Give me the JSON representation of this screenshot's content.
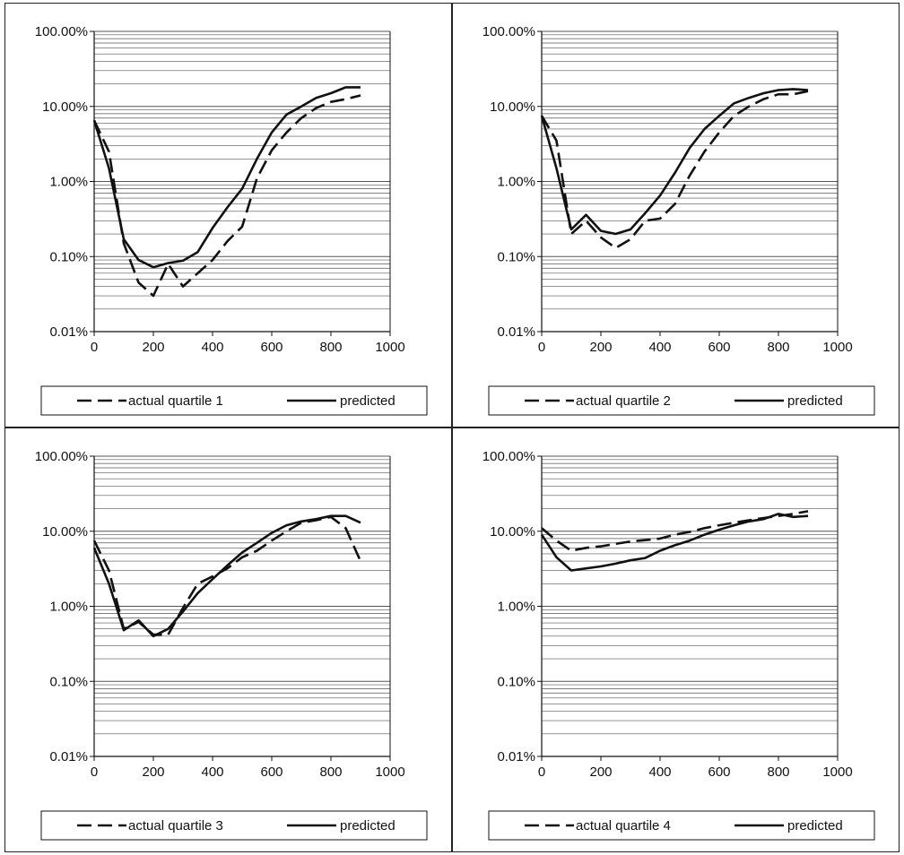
{
  "chart_data": [
    {
      "type": "line",
      "yscale": "log",
      "xlim": [
        0,
        1000
      ],
      "ylim": [
        0.01,
        100
      ],
      "xticks": [
        "0",
        "200",
        "400",
        "600",
        "800",
        "1000"
      ],
      "yticks": [
        "100.00%",
        "10.00%",
        "1.00%",
        "0.10%",
        "0.01%"
      ],
      "grid": true,
      "legend": "bottom",
      "series": [
        {
          "name": "actual quartile 1",
          "style": "dashed",
          "x": [
            0,
            50,
            100,
            150,
            200,
            250,
            300,
            350,
            400,
            450,
            500,
            550,
            600,
            650,
            700,
            750,
            800,
            850,
            900
          ],
          "y": [
            6.5,
            2.5,
            0.15,
            0.045,
            0.03,
            0.08,
            0.04,
            0.06,
            0.09,
            0.16,
            0.25,
            1.1,
            2.6,
            4.5,
            7,
            9.5,
            11.5,
            12.5,
            14
          ]
        },
        {
          "name": "predicted",
          "style": "solid",
          "x": [
            0,
            50,
            100,
            150,
            200,
            250,
            300,
            350,
            400,
            450,
            500,
            550,
            600,
            650,
            700,
            750,
            800,
            850,
            900
          ],
          "y": [
            6.5,
            1.5,
            0.17,
            0.09,
            0.072,
            0.082,
            0.088,
            0.115,
            0.24,
            0.45,
            0.8,
            2,
            4.5,
            7.8,
            10,
            13,
            15,
            18,
            18
          ]
        }
      ]
    },
    {
      "type": "line",
      "yscale": "log",
      "xlim": [
        0,
        1000
      ],
      "ylim": [
        0.01,
        100
      ],
      "xticks": [
        "0",
        "200",
        "400",
        "600",
        "800",
        "1000"
      ],
      "yticks": [
        "100.00%",
        "10.00%",
        "1.00%",
        "0.10%",
        "0.01%"
      ],
      "grid": true,
      "legend": "bottom",
      "series": [
        {
          "name": "actual quartile 2",
          "style": "dashed",
          "x": [
            0,
            50,
            100,
            150,
            200,
            250,
            300,
            350,
            400,
            450,
            500,
            550,
            600,
            650,
            700,
            750,
            800,
            850,
            900
          ],
          "y": [
            7.5,
            3.5,
            0.2,
            0.3,
            0.18,
            0.13,
            0.17,
            0.3,
            0.32,
            0.5,
            1.2,
            2.5,
            4.5,
            7.5,
            10,
            12.5,
            14.5,
            14.5,
            16
          ]
        },
        {
          "name": "predicted",
          "style": "solid",
          "x": [
            0,
            50,
            100,
            150,
            200,
            250,
            300,
            350,
            400,
            450,
            500,
            550,
            600,
            650,
            700,
            750,
            800,
            850,
            900
          ],
          "y": [
            7.5,
            1.5,
            0.23,
            0.36,
            0.22,
            0.2,
            0.23,
            0.38,
            0.65,
            1.3,
            2.8,
            5,
            7.5,
            11,
            13,
            15,
            16.5,
            17,
            16.5
          ]
        }
      ]
    },
    {
      "type": "line",
      "yscale": "log",
      "xlim": [
        0,
        1000
      ],
      "ylim": [
        0.01,
        100
      ],
      "xticks": [
        "0",
        "200",
        "400",
        "600",
        "800",
        "1000"
      ],
      "yticks": [
        "100.00%",
        "10.00%",
        "1.00%",
        "0.10%",
        "0.01%"
      ],
      "grid": true,
      "legend": "bottom",
      "series": [
        {
          "name": "actual quartile 3",
          "style": "dashed",
          "x": [
            0,
            50,
            100,
            150,
            200,
            250,
            300,
            350,
            400,
            450,
            500,
            550,
            600,
            650,
            700,
            750,
            800,
            850,
            900
          ],
          "y": [
            7.5,
            3,
            0.5,
            0.62,
            0.42,
            0.42,
            0.95,
            2,
            2.5,
            3.2,
            4.5,
            5.5,
            7.5,
            10,
            13,
            14,
            15.5,
            11,
            4
          ]
        },
        {
          "name": "predicted",
          "style": "solid",
          "x": [
            0,
            50,
            100,
            150,
            200,
            250,
            300,
            350,
            400,
            450,
            500,
            550,
            600,
            650,
            700,
            750,
            800,
            850,
            900
          ],
          "y": [
            6,
            2,
            0.48,
            0.65,
            0.4,
            0.5,
            0.85,
            1.5,
            2.3,
            3.5,
            5.2,
            7,
            9.5,
            12,
            13.5,
            14.5,
            16,
            16,
            13
          ]
        }
      ]
    },
    {
      "type": "line",
      "yscale": "log",
      "xlim": [
        0,
        1000
      ],
      "ylim": [
        0.01,
        100
      ],
      "xticks": [
        "0",
        "200",
        "400",
        "600",
        "800",
        "1000"
      ],
      "yticks": [
        "100.00%",
        "10.00%",
        "1.00%",
        "0.10%",
        "0.01%"
      ],
      "grid": true,
      "legend": "bottom",
      "series": [
        {
          "name": "actual quartile 4",
          "style": "dashed",
          "x": [
            0,
            50,
            100,
            150,
            200,
            250,
            300,
            350,
            400,
            450,
            500,
            550,
            600,
            650,
            700,
            750,
            800,
            850,
            900
          ],
          "y": [
            11,
            7.5,
            5.5,
            6,
            6.3,
            6.8,
            7.3,
            7.6,
            8,
            9,
            9.8,
            11,
            12,
            13,
            14,
            15,
            16,
            17,
            18.5
          ]
        },
        {
          "name": "predicted",
          "style": "solid",
          "x": [
            0,
            50,
            100,
            150,
            200,
            250,
            300,
            350,
            400,
            450,
            500,
            550,
            600,
            650,
            700,
            750,
            800,
            850,
            900
          ],
          "y": [
            9,
            4.5,
            3,
            3.2,
            3.4,
            3.7,
            4.1,
            4.4,
            5.5,
            6.5,
            7.5,
            9,
            10.5,
            12,
            13.5,
            14.5,
            17,
            15.5,
            16
          ]
        }
      ]
    }
  ]
}
